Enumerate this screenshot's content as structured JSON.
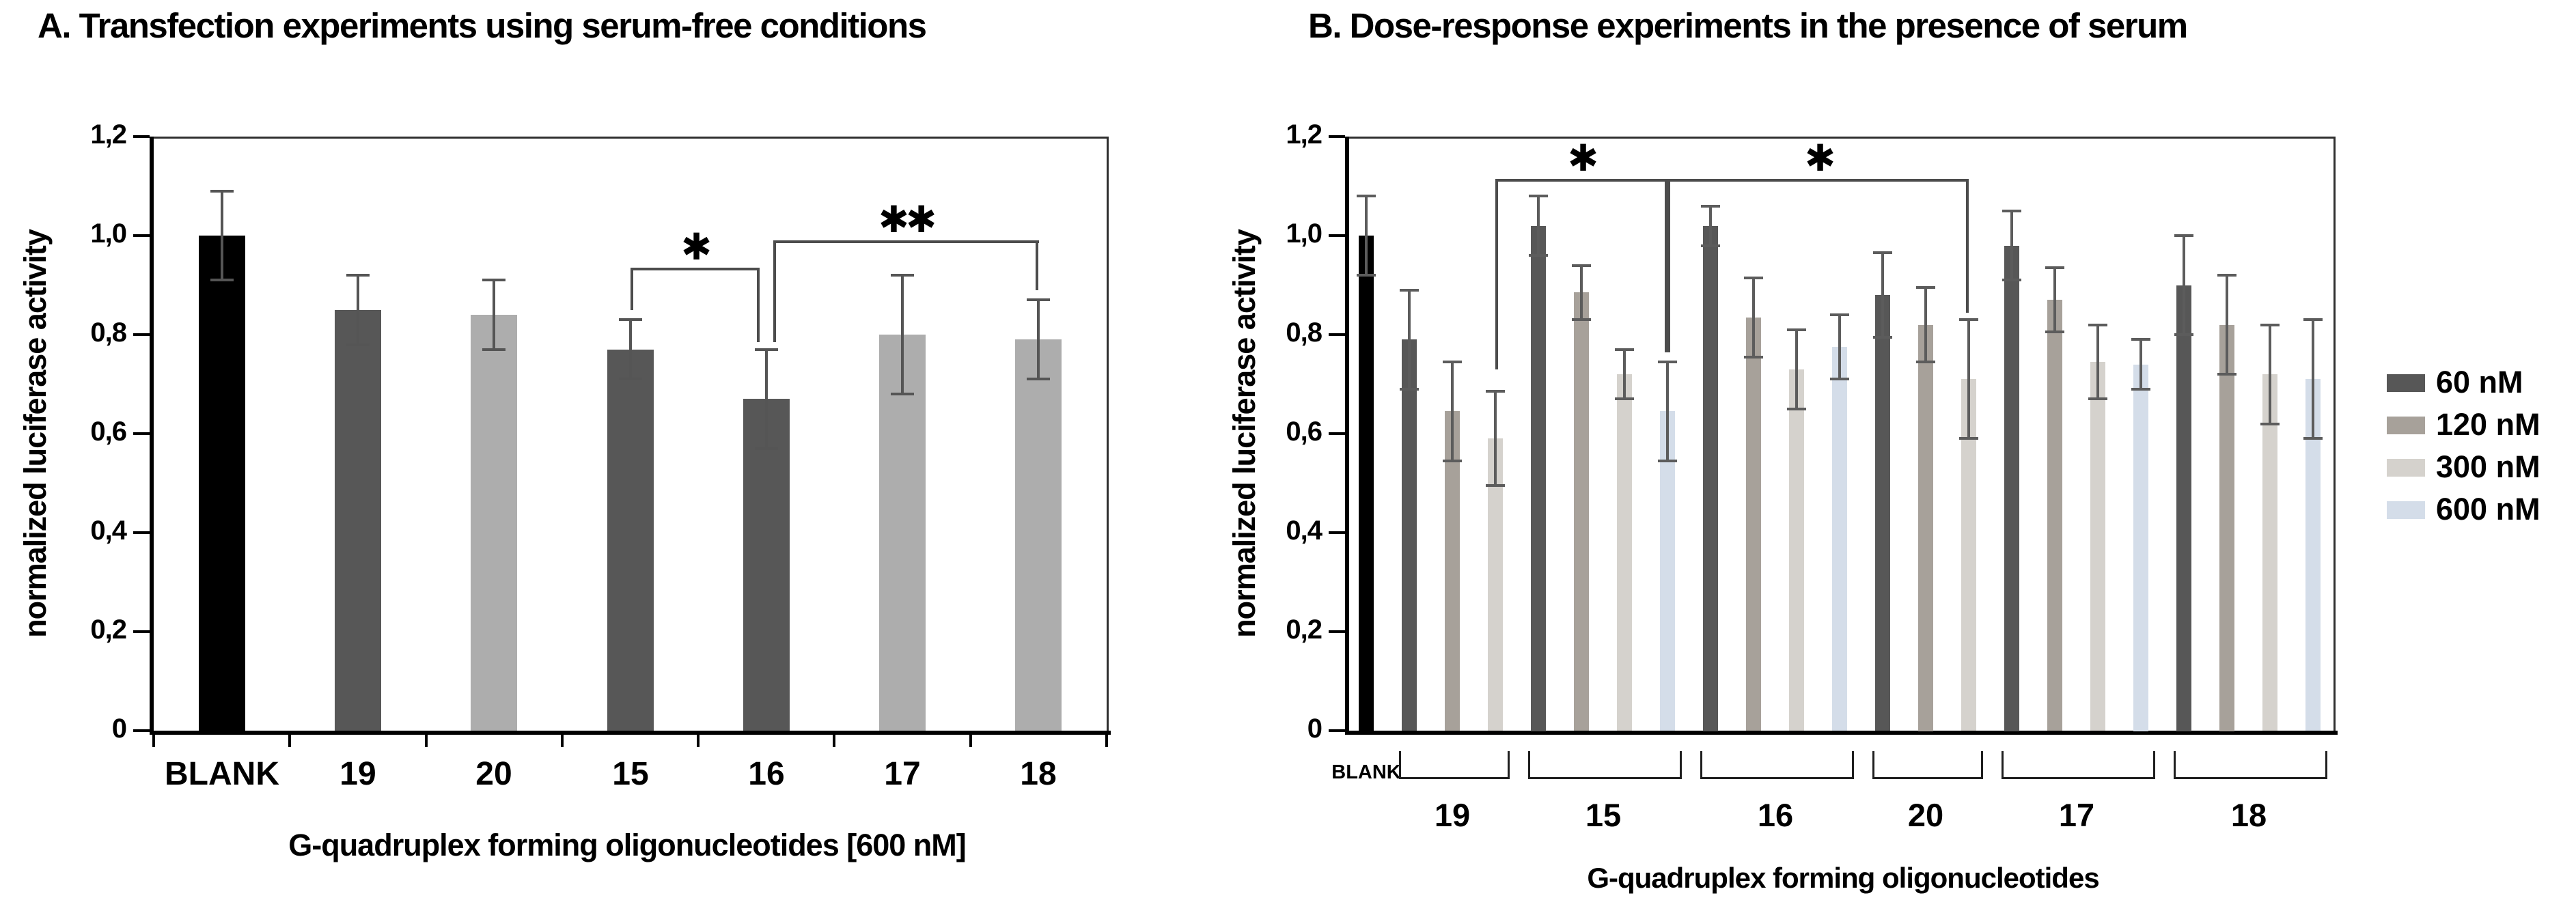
{
  "figure": {
    "background": "#ffffff"
  },
  "chart_data": [
    {
      "type": "bar",
      "panel": "A",
      "title": "A. Transfection experiments using serum-free conditions",
      "ylabel": "normalized luciferase activity",
      "xlabel": "G-quadruplex forming oligonucleotides [600 nM]",
      "ylim": [
        0,
        1.2
      ],
      "grid": false,
      "yticks": [
        {
          "label": "0",
          "value": 0
        },
        {
          "label": "0,2",
          "value": 0.2
        },
        {
          "label": "0,4",
          "value": 0.4
        },
        {
          "label": "0,6",
          "value": 0.6
        },
        {
          "label": "0,8",
          "value": 0.8
        },
        {
          "label": "1,0",
          "value": 1.0
        },
        {
          "label": "1,2",
          "value": 1.2
        }
      ],
      "categories": [
        "BLANK",
        "19",
        "20",
        "15",
        "16",
        "17",
        "18"
      ],
      "values": [
        1.0,
        0.85,
        0.84,
        0.77,
        0.67,
        0.8,
        0.79
      ],
      "errors": [
        0.09,
        0.07,
        0.07,
        0.06,
        0.1,
        0.12,
        0.08
      ],
      "bar_color_keys": [
        "blank",
        "dark",
        "light",
        "dark",
        "dark",
        "light",
        "light"
      ],
      "colors": {
        "blank": "#000000",
        "dark": "#575757",
        "light": "#adadad"
      },
      "error_color": "#555555",
      "significance": [
        {
          "label": "*",
          "from": "15",
          "to": "16",
          "line_value": 0.935,
          "from_drop_to": 0.85,
          "to_drop_to": 0.785,
          "from_dx": 0,
          "to_dx": -10
        },
        {
          "label": "**",
          "from": "16",
          "to": "18",
          "line_value": 0.99,
          "from_drop_to": 0.785,
          "to_drop_to": 0.89,
          "from_dx": 10,
          "to_dx": 0
        }
      ]
    },
    {
      "type": "grouped-bar",
      "panel": "B",
      "title": "B. Dose-response experiments in the presence of serum",
      "ylabel": "normalized luciferase activity",
      "xlabel": "G-quadruplex forming oligonucleotides",
      "ylim": [
        0,
        1.2
      ],
      "grid": false,
      "yticks": [
        {
          "label": "0",
          "value": 0
        },
        {
          "label": "0,2",
          "value": 0.2
        },
        {
          "label": "0,4",
          "value": 0.4
        },
        {
          "label": "0,6",
          "value": 0.6
        },
        {
          "label": "0,8",
          "value": 0.8
        },
        {
          "label": "1,0",
          "value": 1.0
        },
        {
          "label": "1,2",
          "value": 1.2
        }
      ],
      "legend": [
        {
          "label": "60 nM",
          "key": "d60"
        },
        {
          "label": "120 nM",
          "key": "d120"
        },
        {
          "label": "300 nM",
          "key": "d300"
        },
        {
          "label": "600 nM",
          "key": "d600"
        }
      ],
      "legend_position": "right",
      "colors": {
        "blank": "#000000",
        "d60": "#575757",
        "d120": "#a7a19a",
        "d300": "#d5d2cd",
        "d600": "#d4dde9"
      },
      "error_color": "#5c5c5c",
      "groups": [
        {
          "label": "BLANK",
          "style": "blank",
          "bars": [
            {
              "key": "blank",
              "value": 1.0,
              "error": 0.08
            }
          ]
        },
        {
          "label": "19",
          "bars": [
            {
              "key": "d60",
              "value": 0.79,
              "error": 0.1
            },
            {
              "key": "d120",
              "value": 0.645,
              "error": 0.1
            },
            {
              "key": "d300",
              "value": 0.59,
              "error": 0.095
            }
          ]
        },
        {
          "label": "15",
          "bars": [
            {
              "key": "d60",
              "value": 1.02,
              "error": 0.06
            },
            {
              "key": "d120",
              "value": 0.885,
              "error": 0.055
            },
            {
              "key": "d300",
              "value": 0.72,
              "error": 0.05
            },
            {
              "key": "d600",
              "value": 0.645,
              "error": 0.1
            }
          ]
        },
        {
          "label": "16",
          "bars": [
            {
              "key": "d60",
              "value": 1.02,
              "error": 0.04
            },
            {
              "key": "d120",
              "value": 0.835,
              "error": 0.08
            },
            {
              "key": "d300",
              "value": 0.73,
              "error": 0.08
            },
            {
              "key": "d600",
              "value": 0.775,
              "error": 0.065
            }
          ]
        },
        {
          "label": "20",
          "bars": [
            {
              "key": "d60",
              "value": 0.88,
              "error": 0.085
            },
            {
              "key": "d120",
              "value": 0.82,
              "error": 0.075
            },
            {
              "key": "d300",
              "value": 0.71,
              "error": 0.12
            }
          ]
        },
        {
          "label": "17",
          "bars": [
            {
              "key": "d60",
              "value": 0.98,
              "error": 0.07
            },
            {
              "key": "d120",
              "value": 0.87,
              "error": 0.065
            },
            {
              "key": "d300",
              "value": 0.745,
              "error": 0.075
            },
            {
              "key": "d600",
              "value": 0.74,
              "error": 0.05
            }
          ]
        },
        {
          "label": "18",
          "bars": [
            {
              "key": "d60",
              "value": 0.9,
              "error": 0.1
            },
            {
              "key": "d120",
              "value": 0.82,
              "error": 0.1
            },
            {
              "key": "d300",
              "value": 0.72,
              "error": 0.1
            },
            {
              "key": "d600",
              "value": 0.71,
              "error": 0.12
            }
          ]
        }
      ],
      "significance": [
        {
          "label": "*",
          "from": {
            "group": "19",
            "bar": 2
          },
          "to": {
            "group": "15",
            "bar": 3
          },
          "line_value": 1.115,
          "from_drop_to": 0.73,
          "to_drop_to": 0.765
        },
        {
          "label": "*",
          "from": {
            "group": "15",
            "bar": 3
          },
          "to": {
            "group": "20",
            "bar": 2
          },
          "line_value": 1.115,
          "from_drop_to": 0.765,
          "to_drop_to": 0.845
        }
      ]
    }
  ]
}
